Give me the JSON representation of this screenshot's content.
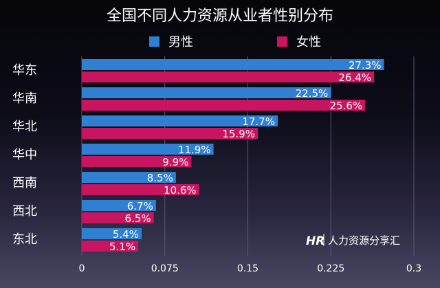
{
  "chart_data": {
    "type": "bar",
    "orientation": "horizontal",
    "title": "全国不同人力资源从业者性别分布",
    "categories": [
      "华东",
      "华南",
      "华北",
      "华中",
      "西南",
      "西北",
      "东北"
    ],
    "series": [
      {
        "name": "男性",
        "color": "#2f7fd2",
        "values": [
          0.273,
          0.225,
          0.177,
          0.119,
          0.085,
          0.067,
          0.054
        ],
        "labels": [
          "27.3%",
          "22.5%",
          "17.7%",
          "11.9%",
          "8.5%",
          "6.7%",
          "5.4%"
        ]
      },
      {
        "name": "女性",
        "color": "#c8155f",
        "values": [
          0.264,
          0.256,
          0.159,
          0.099,
          0.106,
          0.065,
          0.051
        ],
        "labels": [
          "26.4%",
          "25.6%",
          "15.9%",
          "9.9%",
          "10.6%",
          "6.5%",
          "5.1%"
        ]
      }
    ],
    "xlim": [
      0,
      0.3
    ],
    "xticks": [
      0,
      0.075,
      0.15,
      0.225,
      0.3
    ],
    "xtick_labels": [
      "0",
      "0.075",
      "0.15",
      "0.225",
      "0.3"
    ],
    "grid": "vertical",
    "legend": "top"
  },
  "watermark": {
    "logo_text": "HR",
    "text": "人力资源分享汇"
  }
}
